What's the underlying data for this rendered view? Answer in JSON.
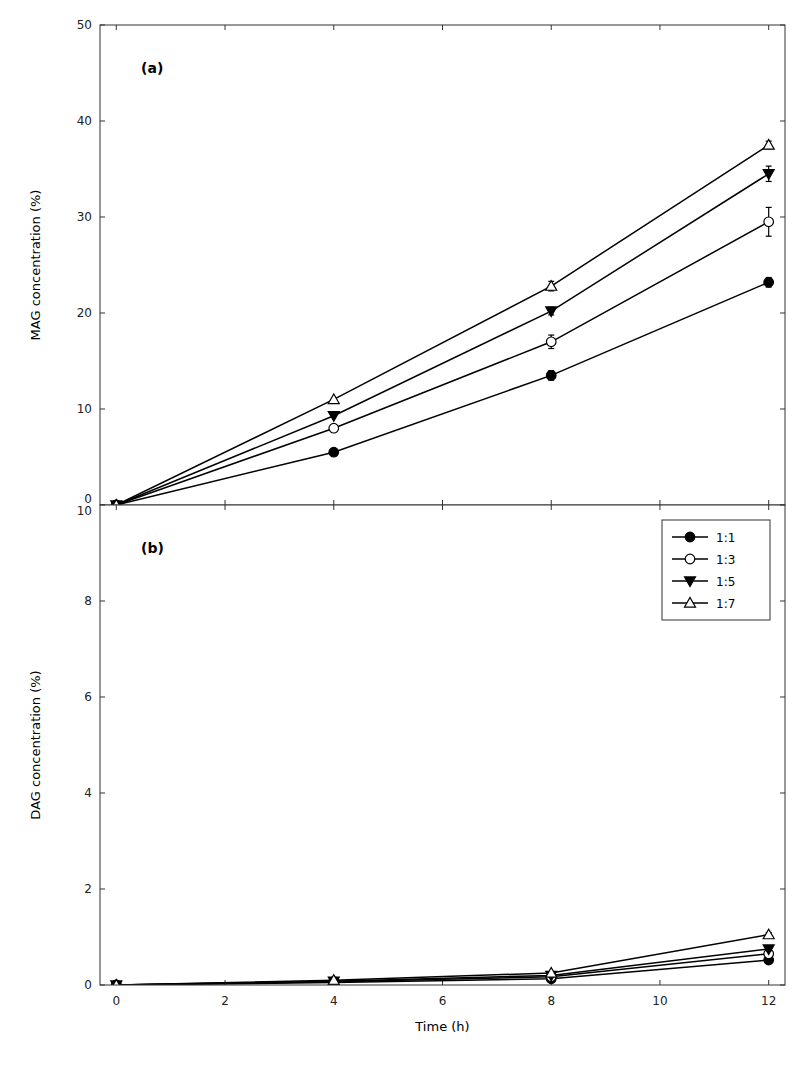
{
  "chart_data": [
    {
      "type": "line",
      "x": [
        0,
        4,
        8,
        12
      ],
      "xlim": [
        -0.3,
        12.3
      ],
      "xticks": [
        0,
        2,
        4,
        6,
        8,
        10,
        12
      ],
      "ylim": [
        0,
        50
      ],
      "yticks": [
        0,
        10,
        20,
        30,
        40,
        50
      ],
      "ylabel": "MAG concentration (%)",
      "annotations": [
        "(a)"
      ],
      "tick_labels": "y",
      "grid": false,
      "series": [
        {
          "name": "1:1",
          "color": "black",
          "marker": "circle",
          "values": [
            0,
            5.5,
            13.5,
            23.2
          ],
          "errors": [
            0,
            0.0,
            0.5,
            0.5
          ]
        },
        {
          "name": "1:3",
          "color": "black",
          "marker": "circle-open",
          "values": [
            0,
            8.0,
            17.0,
            29.5
          ],
          "errors": [
            0,
            0.0,
            0.7,
            1.5
          ]
        },
        {
          "name": "1:5",
          "color": "black",
          "marker": "triangle-down",
          "values": [
            0,
            9.3,
            20.2,
            34.5
          ],
          "errors": [
            0,
            0.0,
            0.4,
            0.8
          ]
        },
        {
          "name": "1:7",
          "color": "black",
          "marker": "triangle-up-open",
          "values": [
            0,
            11.0,
            22.8,
            37.5
          ],
          "errors": [
            0,
            0.0,
            0.5,
            0.4
          ]
        }
      ]
    },
    {
      "type": "line",
      "x": [
        0,
        4,
        8,
        12
      ],
      "xlim": [
        -0.3,
        12.3
      ],
      "xticks": [
        0,
        2,
        4,
        6,
        8,
        10,
        12
      ],
      "ylim": [
        0,
        10
      ],
      "yticks": [
        0,
        2,
        4,
        6,
        8,
        10
      ],
      "xlabel": "Time (h)",
      "ylabel": "DAG concentration (%)",
      "annotations": [
        "(b)"
      ],
      "legend": "upper right",
      "grid": false,
      "series": [
        {
          "name": "1:1",
          "color": "black",
          "marker": "circle",
          "values": [
            0,
            0.05,
            0.13,
            0.52
          ],
          "errors": [
            0,
            0.0,
            0.02,
            0.04
          ]
        },
        {
          "name": "1:3",
          "color": "black",
          "marker": "circle-open",
          "values": [
            0,
            0.07,
            0.17,
            0.65
          ],
          "errors": [
            0,
            0.0,
            0.02,
            0.04
          ]
        },
        {
          "name": "1:5",
          "color": "black",
          "marker": "triangle-down",
          "values": [
            0,
            0.08,
            0.2,
            0.75
          ],
          "errors": [
            0,
            0.0,
            0.02,
            0.04
          ]
        },
        {
          "name": "1:7",
          "color": "black",
          "marker": "triangle-up-open",
          "values": [
            0,
            0.1,
            0.25,
            1.05
          ],
          "errors": [
            0,
            0.0,
            0.02,
            0.04
          ]
        }
      ]
    }
  ]
}
